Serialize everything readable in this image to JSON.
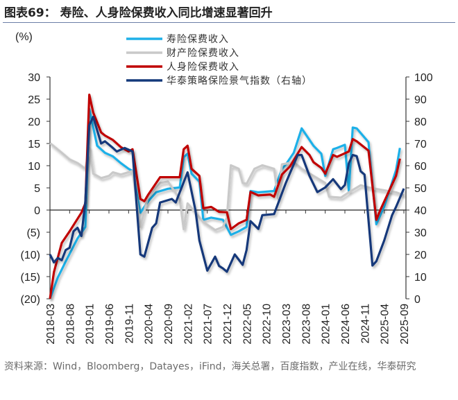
{
  "title": "图表69：  寿险、人身险保费收入同比增速显著回升",
  "source": "资料来源：Wind，Bloomberg，Datayes，iFind，海关总署，百度指数，产业在线，华泰研究",
  "chart_data": {
    "type": "line",
    "title": "",
    "y_unit_label": "(%)",
    "ylim_left": [
      -20,
      30
    ],
    "yticks_left": [
      "30",
      "25",
      "20",
      "15",
      "10",
      "5",
      "0",
      "(5)",
      "(10)",
      "(15)",
      "(20)"
    ],
    "ylim_right": [
      0,
      100
    ],
    "yticks_right": [
      "100",
      "90",
      "80",
      "70",
      "60",
      "50",
      "40",
      "30",
      "20",
      "10",
      "0"
    ],
    "xlim": [
      "2018-03",
      "2025-09"
    ],
    "xticks": [
      "2018-03",
      "2018-08",
      "2019-01",
      "2019-06",
      "2019-11",
      "2020-04",
      "2020-09",
      "2021-02",
      "2021-07",
      "2021-12",
      "2022-05",
      "2022-10",
      "2023-03",
      "2023-08",
      "2024-01",
      "2024-06",
      "2024-11",
      "2025-04",
      "2025-09"
    ],
    "grid": false,
    "legend_position": "top-center",
    "series": [
      {
        "name": "寿险保费收入",
        "axis": "left",
        "color": "#1fb0e8",
        "points": [
          [
            "2018-03",
            -20
          ],
          [
            "2018-05",
            -15.2
          ],
          [
            "2018-07",
            -11.6
          ],
          [
            "2018-10",
            -6.4
          ],
          [
            "2018-12",
            -3.8
          ],
          [
            "2019-01",
            22.8
          ],
          [
            "2019-03",
            14.5
          ],
          [
            "2019-05",
            12.9
          ],
          [
            "2019-07",
            12.1
          ],
          [
            "2019-09",
            10.6
          ],
          [
            "2019-11",
            9.3
          ],
          [
            "2019-12",
            8.8
          ],
          [
            "2020-02",
            -0.6
          ],
          [
            "2020-04",
            2
          ],
          [
            "2020-06",
            4
          ],
          [
            "2020-09",
            4.8
          ],
          [
            "2020-12",
            5.1
          ],
          [
            "2021-01",
            11.9
          ],
          [
            "2021-02",
            12.7
          ],
          [
            "2021-03",
            8.2
          ],
          [
            "2021-05",
            6.4
          ],
          [
            "2021-06",
            -2.2
          ],
          [
            "2021-08",
            -1.7
          ],
          [
            "2021-11",
            -2.2
          ],
          [
            "2022-01",
            -5.6
          ],
          [
            "2022-03",
            -4.8
          ],
          [
            "2022-05",
            -3.8
          ],
          [
            "2022-06",
            4.3
          ],
          [
            "2022-08",
            4
          ],
          [
            "2022-12",
            4.3
          ],
          [
            "2023-02",
            9.3
          ],
          [
            "2023-03",
            10.3
          ],
          [
            "2023-05",
            12.9
          ],
          [
            "2023-07",
            18.4
          ],
          [
            "2023-10",
            14.5
          ],
          [
            "2023-12",
            12.7
          ],
          [
            "2024-01",
            7.7
          ],
          [
            "2024-03",
            13.7
          ],
          [
            "2024-04",
            14
          ],
          [
            "2024-06",
            14.7
          ],
          [
            "2024-07",
            4.3
          ],
          [
            "2024-08",
            18.6
          ],
          [
            "2024-09",
            18.4
          ],
          [
            "2024-12",
            15.3
          ],
          [
            "2025-02",
            -3.2
          ],
          [
            "2025-04",
            0.8
          ],
          [
            "2025-07",
            9
          ],
          [
            "2025-08",
            14
          ]
        ]
      },
      {
        "name": "财产险保费收入",
        "axis": "left",
        "color": "#c9c9c9",
        "points": [
          [
            "2018-03",
            15.1
          ],
          [
            "2018-06",
            12.9
          ],
          [
            "2018-08",
            11.4
          ],
          [
            "2018-10",
            10.6
          ],
          [
            "2018-12",
            9.3
          ],
          [
            "2019-01",
            14
          ],
          [
            "2019-02",
            8.2
          ],
          [
            "2019-04",
            7.2
          ],
          [
            "2019-06",
            7.7
          ],
          [
            "2019-07",
            8.5
          ],
          [
            "2019-09",
            8
          ],
          [
            "2019-12",
            8.8
          ],
          [
            "2020-02",
            -3.8
          ],
          [
            "2020-04",
            3.3
          ],
          [
            "2020-07",
            6.1
          ],
          [
            "2020-09",
            6.4
          ],
          [
            "2020-12",
            2.5
          ],
          [
            "2021-01",
            -4.3
          ],
          [
            "2021-02",
            1.5
          ],
          [
            "2021-04",
            -0.6
          ],
          [
            "2021-06",
            -2.7
          ],
          [
            "2021-09",
            -4.5
          ],
          [
            "2021-11",
            -3.8
          ],
          [
            "2021-12",
            -1.7
          ],
          [
            "2022-01",
            10.1
          ],
          [
            "2022-03",
            9.3
          ],
          [
            "2022-04",
            6.1
          ],
          [
            "2022-05",
            5.9
          ],
          [
            "2022-07",
            9.3
          ],
          [
            "2022-09",
            10.1
          ],
          [
            "2022-12",
            9.3
          ],
          [
            "2023-01",
            2.5
          ],
          [
            "2023-02",
            10.3
          ],
          [
            "2023-05",
            10.8
          ],
          [
            "2023-07",
            9.3
          ],
          [
            "2023-10",
            7.7
          ],
          [
            "2024-01",
            6.1
          ],
          [
            "2024-02",
            3
          ],
          [
            "2024-05",
            2.8
          ],
          [
            "2024-07",
            4
          ],
          [
            "2024-10",
            5.6
          ],
          [
            "2024-12",
            5.1
          ],
          [
            "2025-03",
            4.6
          ],
          [
            "2025-07",
            4
          ],
          [
            "2025-09",
            3.3
          ]
        ]
      },
      {
        "name": "人身险保费收入",
        "axis": "left",
        "color": "#c00000",
        "points": [
          [
            "2018-03",
            -20
          ],
          [
            "2018-04",
            -14
          ],
          [
            "2018-06",
            -7.4
          ],
          [
            "2018-08",
            -4.8
          ],
          [
            "2018-11",
            -0.6
          ],
          [
            "2018-12",
            1.5
          ],
          [
            "2019-01",
            26
          ],
          [
            "2019-02",
            22
          ],
          [
            "2019-04",
            17.5
          ],
          [
            "2019-05",
            16.8
          ],
          [
            "2019-07",
            15.8
          ],
          [
            "2019-09",
            14.2
          ],
          [
            "2019-11",
            13.2
          ],
          [
            "2019-12",
            13.7
          ],
          [
            "2020-02",
            2.5
          ],
          [
            "2020-03",
            2
          ],
          [
            "2020-04",
            3.5
          ],
          [
            "2020-06",
            6.1
          ],
          [
            "2020-07",
            7.4
          ],
          [
            "2020-12",
            7.4
          ],
          [
            "2021-01",
            13.7
          ],
          [
            "2021-02",
            14.5
          ],
          [
            "2021-03",
            9.3
          ],
          [
            "2021-05",
            7.7
          ],
          [
            "2021-06",
            0.4
          ],
          [
            "2021-08",
            0.7
          ],
          [
            "2021-10",
            -0.4
          ],
          [
            "2021-12",
            -0.5
          ],
          [
            "2022-01",
            -4.3
          ],
          [
            "2022-03",
            -3
          ],
          [
            "2022-05",
            -2.2
          ],
          [
            "2022-06",
            4.1
          ],
          [
            "2022-08",
            3.3
          ],
          [
            "2022-11",
            3.5
          ],
          [
            "2022-12",
            3
          ],
          [
            "2023-02",
            8
          ],
          [
            "2023-04",
            9.8
          ],
          [
            "2023-07",
            14.2
          ],
          [
            "2023-09",
            12.4
          ],
          [
            "2023-10",
            10.8
          ],
          [
            "2023-12",
            9.5
          ],
          [
            "2024-01",
            8.2
          ],
          [
            "2024-03",
            12.4
          ],
          [
            "2024-04",
            12
          ],
          [
            "2024-07",
            13.2
          ],
          [
            "2024-08",
            16
          ],
          [
            "2024-09",
            15.5
          ],
          [
            "2024-12",
            13.4
          ],
          [
            "2025-02",
            -2.2
          ],
          [
            "2025-03",
            0
          ],
          [
            "2025-07",
            7.7
          ],
          [
            "2025-08",
            11.6
          ]
        ]
      },
      {
        "name": "华泰策略保险景气指数（右轴）",
        "axis": "right",
        "color": "#13397a",
        "points": [
          [
            "2018-03",
            20
          ],
          [
            "2018-04",
            16.4
          ],
          [
            "2018-05",
            18.4
          ],
          [
            "2018-06",
            17.4
          ],
          [
            "2018-07",
            22
          ],
          [
            "2018-08",
            23
          ],
          [
            "2018-09",
            30.4
          ],
          [
            "2018-10",
            32
          ],
          [
            "2018-11",
            28.3
          ],
          [
            "2018-12",
            44
          ],
          [
            "2019-01",
            78.3
          ],
          [
            "2019-02",
            82
          ],
          [
            "2019-04",
            70
          ],
          [
            "2019-05",
            71
          ],
          [
            "2019-07",
            68
          ],
          [
            "2019-08",
            66.4
          ],
          [
            "2019-10",
            68
          ],
          [
            "2019-12",
            66.4
          ],
          [
            "2020-02",
            20
          ],
          [
            "2020-03",
            19
          ],
          [
            "2020-05",
            32
          ],
          [
            "2020-06",
            34
          ],
          [
            "2020-07",
            43.4
          ],
          [
            "2020-10",
            45
          ],
          [
            "2020-11",
            43.4
          ],
          [
            "2021-02",
            57
          ],
          [
            "2021-04",
            39.8
          ],
          [
            "2021-05",
            26.3
          ],
          [
            "2021-07",
            12.7
          ],
          [
            "2021-09",
            19
          ],
          [
            "2021-10",
            14.8
          ],
          [
            "2021-11",
            13.7
          ],
          [
            "2021-12",
            12.2
          ],
          [
            "2022-02",
            20
          ],
          [
            "2022-04",
            15.3
          ],
          [
            "2022-05",
            22
          ],
          [
            "2022-06",
            35
          ],
          [
            "2022-08",
            31.5
          ],
          [
            "2022-09",
            37.7
          ],
          [
            "2022-12",
            38.2
          ],
          [
            "2023-03",
            52.3
          ],
          [
            "2023-06",
            64.8
          ],
          [
            "2023-07",
            64.8
          ],
          [
            "2023-09",
            55.4
          ],
          [
            "2023-11",
            48.1
          ],
          [
            "2024-01",
            50.2
          ],
          [
            "2024-03",
            53.9
          ],
          [
            "2024-05",
            49.4
          ],
          [
            "2024-06",
            51.3
          ],
          [
            "2024-07",
            61.1
          ],
          [
            "2024-08",
            64.8
          ],
          [
            "2024-09",
            64.3
          ],
          [
            "2024-10",
            57.5
          ],
          [
            "2024-11",
            56
          ],
          [
            "2025-01",
            15
          ],
          [
            "2025-02",
            16.9
          ],
          [
            "2025-04",
            26.3
          ],
          [
            "2025-06",
            37.7
          ],
          [
            "2025-07",
            41.4
          ],
          [
            "2025-09",
            49.7
          ]
        ]
      }
    ]
  }
}
